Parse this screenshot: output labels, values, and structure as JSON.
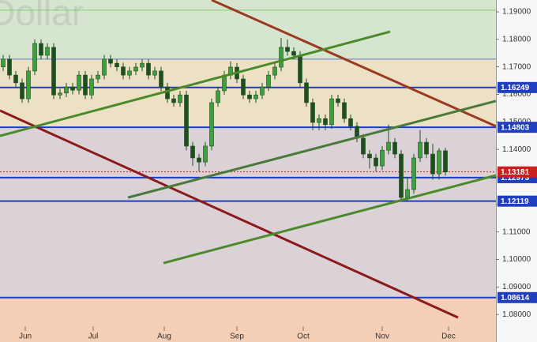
{
  "chart_data": {
    "type": "candlestick",
    "title": "Dollar",
    "xlim": [
      0,
      157
    ],
    "xticks": [
      {
        "value": 8,
        "label": "Jun"
      },
      {
        "value": 29.5,
        "label": "Jul"
      },
      {
        "value": 52,
        "label": "Aug"
      },
      {
        "value": 75,
        "label": "Sep"
      },
      {
        "value": 96,
        "label": "Oct"
      },
      {
        "value": 121,
        "label": "Nov"
      },
      {
        "value": 142,
        "label": "Dec"
      }
    ],
    "ylim": [
      1.07,
      1.1943
    ],
    "yticks": [
      {
        "value": 1.19,
        "label": "1.19000"
      },
      {
        "value": 1.18,
        "label": "1.18000"
      },
      {
        "value": 1.17,
        "label": "1.17000"
      },
      {
        "value": 1.16,
        "label": "1.16000"
      },
      {
        "value": 1.15,
        "label": "1.15000"
      },
      {
        "value": 1.14,
        "label": "1.14000"
      },
      {
        "value": 1.13,
        "label": "1.13000"
      },
      {
        "value": 1.12,
        "label": "1.12000"
      },
      {
        "value": 1.11,
        "label": "1.11000"
      },
      {
        "value": 1.1,
        "label": "1.10000"
      },
      {
        "value": 1.09,
        "label": "1.09000"
      },
      {
        "value": 1.08,
        "label": "1.08000"
      }
    ],
    "zones": [
      {
        "from": 1.1728,
        "to": 1.1943,
        "color": "#d6e5cf"
      },
      {
        "from": 1.14803,
        "to": 1.1728,
        "color": "#ede1c5"
      },
      {
        "from": 1.08614,
        "to": 1.14803,
        "color": "#dbd2d7"
      },
      {
        "from": 1.07,
        "to": 1.08614,
        "color": "#f5ceb6"
      }
    ],
    "lines": [
      {
        "value": 1.1906,
        "color": "#7fcf6f"
      },
      {
        "value": 1.1728,
        "color": "#5a7fc0"
      }
    ],
    "levels": [
      {
        "value": 1.16249,
        "color": "#1f3fbf"
      },
      {
        "value": 1.14803,
        "color": "#1f3fbf"
      },
      {
        "value": 1.12973,
        "color": "#1f3fbf"
      },
      {
        "value": 1.12119,
        "color": "#1f3fbf"
      },
      {
        "value": 1.08614,
        "color": "#1f3fbf"
      }
    ],
    "current": {
      "value": 1.13181,
      "color": "#cc1f1f"
    },
    "trendlines": [
      {
        "x": [
          67,
          157
        ],
        "values": [
          1.1943,
          1.1484
        ],
        "color": "#9a3a1e"
      },
      {
        "x": [
          0,
          145
        ],
        "values": [
          1.1541,
          1.0789
        ],
        "color": "#8b1a1a"
      },
      {
        "x": [
          0,
          123.5
        ],
        "values": [
          1.1449,
          1.1828
        ],
        "color": "#4a8a2a"
      },
      {
        "x": [
          40.5,
          157
        ],
        "values": [
          1.1225,
          1.1576
        ],
        "color": "#4a7a3a"
      },
      {
        "x": [
          51.75,
          157
        ],
        "values": [
          1.0987,
          1.1306
        ],
        "color": "#4a8a2a"
      }
    ],
    "up_color": "#3f9f3f",
    "down_color": "#1e4d1e",
    "x": [
      1,
      3,
      5,
      7,
      9,
      11,
      13,
      15,
      17,
      19,
      21,
      23,
      25,
      27,
      29,
      31,
      33,
      35,
      37,
      39,
      41,
      43,
      45,
      47,
      49,
      51,
      53,
      55,
      57,
      59,
      61,
      63,
      65,
      67,
      69,
      71,
      73,
      75,
      77,
      79,
      81,
      83,
      85,
      87,
      89,
      91,
      93,
      95,
      97,
      99,
      101,
      103,
      105,
      107,
      109,
      111,
      113,
      115,
      117,
      119,
      121,
      123,
      125,
      127,
      129,
      131,
      133,
      135,
      137,
      139,
      141
    ],
    "candles": [
      [
        1.17,
        1.1743,
        1.1685,
        1.1728
      ],
      [
        1.1728,
        1.1743,
        1.1655,
        1.167
      ],
      [
        1.167,
        1.1685,
        1.1627,
        1.1642
      ],
      [
        1.1642,
        1.1657,
        1.1569,
        1.1584
      ],
      [
        1.1584,
        1.17,
        1.1569,
        1.1685
      ],
      [
        1.1685,
        1.18,
        1.167,
        1.1785
      ],
      [
        1.1785,
        1.18,
        1.1727,
        1.1742
      ],
      [
        1.1742,
        1.1786,
        1.1727,
        1.1771
      ],
      [
        1.1771,
        1.1786,
        1.1583,
        1.1598
      ],
      [
        1.1598,
        1.162,
        1.1583,
        1.1605
      ],
      [
        1.1605,
        1.1642,
        1.159,
        1.1627
      ],
      [
        1.1627,
        1.1642,
        1.16,
        1.1615
      ],
      [
        1.1615,
        1.1685,
        1.16,
        1.167
      ],
      [
        1.167,
        1.1685,
        1.1583,
        1.1598
      ],
      [
        1.1598,
        1.1671,
        1.1583,
        1.1656
      ],
      [
        1.1656,
        1.1685,
        1.1641,
        1.167
      ],
      [
        1.167,
        1.1743,
        1.1655,
        1.1728
      ],
      [
        1.1728,
        1.1743,
        1.1698,
        1.1713
      ],
      [
        1.1713,
        1.1728,
        1.1685,
        1.17
      ],
      [
        1.17,
        1.1715,
        1.1655,
        1.167
      ],
      [
        1.167,
        1.17,
        1.1655,
        1.1685
      ],
      [
        1.1685,
        1.1714,
        1.167,
        1.1699
      ],
      [
        1.1699,
        1.1728,
        1.1684,
        1.1713
      ],
      [
        1.1713,
        1.1728,
        1.1655,
        1.167
      ],
      [
        1.167,
        1.17,
        1.1655,
        1.1685
      ],
      [
        1.1685,
        1.17,
        1.1612,
        1.1627
      ],
      [
        1.1627,
        1.1642,
        1.1569,
        1.1584
      ],
      [
        1.1584,
        1.1599,
        1.1555,
        1.157
      ],
      [
        1.157,
        1.1613,
        1.1555,
        1.1598
      ],
      [
        1.1598,
        1.1613,
        1.1397,
        1.1412
      ],
      [
        1.1412,
        1.1427,
        1.134,
        1.1369
      ],
      [
        1.1369,
        1.1384,
        1.132,
        1.1354
      ],
      [
        1.1354,
        1.1427,
        1.1339,
        1.1412
      ],
      [
        1.1412,
        1.1585,
        1.1397,
        1.157
      ],
      [
        1.157,
        1.1628,
        1.1555,
        1.1613
      ],
      [
        1.1613,
        1.1685,
        1.1598,
        1.167
      ],
      [
        1.167,
        1.172,
        1.1655,
        1.1699
      ],
      [
        1.1699,
        1.1714,
        1.1641,
        1.1656
      ],
      [
        1.1656,
        1.1671,
        1.1583,
        1.1598
      ],
      [
        1.1598,
        1.1613,
        1.1569,
        1.1584
      ],
      [
        1.1584,
        1.1613,
        1.1569,
        1.1598
      ],
      [
        1.1598,
        1.1642,
        1.1583,
        1.1627
      ],
      [
        1.1627,
        1.1685,
        1.1612,
        1.167
      ],
      [
        1.167,
        1.1714,
        1.1655,
        1.1699
      ],
      [
        1.1699,
        1.1805,
        1.1684,
        1.1771
      ],
      [
        1.1771,
        1.18,
        1.1741,
        1.1756
      ],
      [
        1.1756,
        1.1771,
        1.1727,
        1.1742
      ],
      [
        1.1742,
        1.1757,
        1.1627,
        1.1642
      ],
      [
        1.1642,
        1.1657,
        1.1555,
        1.157
      ],
      [
        1.157,
        1.1585,
        1.147,
        1.1498
      ],
      [
        1.1498,
        1.1527,
        1.147,
        1.1512
      ],
      [
        1.1512,
        1.1527,
        1.147,
        1.149
      ],
      [
        1.149,
        1.1599,
        1.1475,
        1.1584
      ],
      [
        1.1584,
        1.1599,
        1.1555,
        1.157
      ],
      [
        1.157,
        1.1585,
        1.1497,
        1.1512
      ],
      [
        1.1512,
        1.1527,
        1.1469,
        1.1484
      ],
      [
        1.1484,
        1.1499,
        1.1426,
        1.1441
      ],
      [
        1.1441,
        1.1456,
        1.1368,
        1.1383
      ],
      [
        1.1383,
        1.1398,
        1.133,
        1.1369
      ],
      [
        1.1369,
        1.1384,
        1.132,
        1.134
      ],
      [
        1.134,
        1.1412,
        1.1325,
        1.1397
      ],
      [
        1.1397,
        1.149,
        1.1382,
        1.1426
      ],
      [
        1.1426,
        1.1441,
        1.1368,
        1.1383
      ],
      [
        1.1383,
        1.1398,
        1.1212,
        1.1225
      ],
      [
        1.1225,
        1.13,
        1.1212,
        1.1254
      ],
      [
        1.1254,
        1.1384,
        1.1239,
        1.1369
      ],
      [
        1.1369,
        1.147,
        1.1354,
        1.1426
      ],
      [
        1.1426,
        1.1441,
        1.1368,
        1.1383
      ],
      [
        1.1383,
        1.142,
        1.129,
        1.1311
      ],
      [
        1.1311,
        1.1405,
        1.129,
        1.1395
      ],
      [
        1.1395,
        1.1405,
        1.1305,
        1.1318
      ]
    ]
  }
}
